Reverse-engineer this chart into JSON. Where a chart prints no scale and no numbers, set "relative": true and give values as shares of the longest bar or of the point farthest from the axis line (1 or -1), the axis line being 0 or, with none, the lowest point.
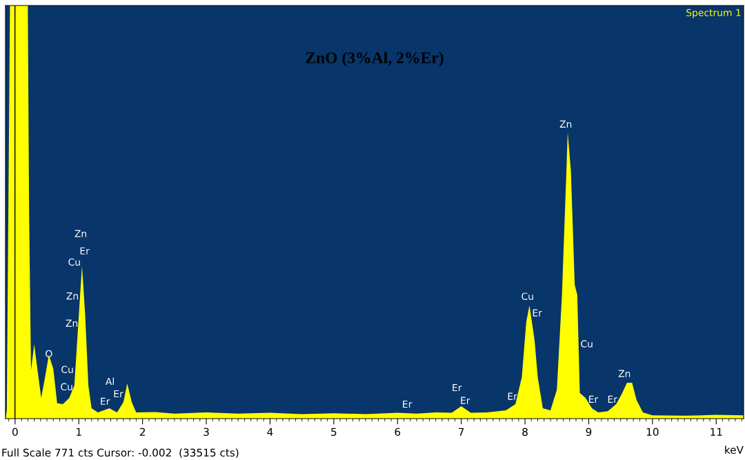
{
  "chart_data": {
    "type": "area",
    "title": "ZnO (3%Al, 2%Er)",
    "xlabel": "keV",
    "relative": true,
    "xlim": [
      -0.15,
      11.43
    ],
    "xticks": [
      0,
      1,
      2,
      3,
      4,
      5,
      6,
      7,
      8,
      9,
      10,
      11
    ],
    "grid": false,
    "legend": false,
    "x": [
      -0.15,
      -0.13,
      -0.08,
      0.2,
      0.22,
      0.25,
      0.3,
      0.35,
      0.41,
      0.47,
      0.53,
      0.6,
      0.66,
      0.75,
      0.85,
      0.93,
      1.0,
      1.05,
      1.1,
      1.15,
      1.2,
      1.3,
      1.48,
      1.6,
      1.7,
      1.76,
      1.83,
      1.9,
      2.2,
      2.5,
      3.0,
      3.5,
      4.0,
      4.5,
      5.0,
      5.5,
      6.0,
      6.3,
      6.6,
      6.85,
      7.0,
      7.15,
      7.4,
      7.7,
      7.85,
      7.95,
      8.02,
      8.07,
      8.15,
      8.2,
      8.28,
      8.4,
      8.5,
      8.58,
      8.65,
      8.67,
      8.72,
      8.78,
      8.82,
      8.86,
      8.95,
      9.05,
      9.15,
      9.3,
      9.43,
      9.52,
      9.6,
      9.68,
      9.75,
      9.85,
      10.0,
      10.5,
      11.0,
      11.43
    ],
    "series": [
      {
        "color": "#ffff00",
        "values": [
          0,
          0.02,
          1.0,
          1.0,
          0.5,
          0.117,
          0.18,
          0.12,
          0.05,
          0.1,
          0.154,
          0.12,
          0.037,
          0.035,
          0.05,
          0.08,
          0.25,
          0.37,
          0.25,
          0.08,
          0.025,
          0.015,
          0.025,
          0.015,
          0.04,
          0.085,
          0.04,
          0.015,
          0.016,
          0.012,
          0.015,
          0.012,
          0.014,
          0.011,
          0.013,
          0.011,
          0.014,
          0.012,
          0.015,
          0.014,
          0.03,
          0.014,
          0.015,
          0.02,
          0.035,
          0.1,
          0.234,
          0.274,
          0.19,
          0.1,
          0.025,
          0.02,
          0.07,
          0.3,
          0.6,
          0.693,
          0.6,
          0.324,
          0.3,
          0.062,
          0.05,
          0.025,
          0.015,
          0.018,
          0.035,
          0.06,
          0.087,
          0.087,
          0.045,
          0.015,
          0.008,
          0.007,
          0.009,
          0.008
        ]
      }
    ],
    "ref_lines": [
      {
        "axis": "x",
        "value": -0.002,
        "color": "#000000"
      }
    ],
    "annotations": [
      "Spectrum 1",
      "Full Scale 771 cts Cursor: -0.002  (33515 cts)",
      "Zn",
      "Er",
      "Cu",
      "Zn",
      "Zn",
      "O",
      "Cu",
      "Cu",
      "Al",
      "Er",
      "Er",
      "Er",
      "Er",
      "Er",
      "Er",
      "Cu",
      "Er",
      "Zn",
      "Cu",
      "Er",
      "Er",
      "Zn"
    ]
  }
}
